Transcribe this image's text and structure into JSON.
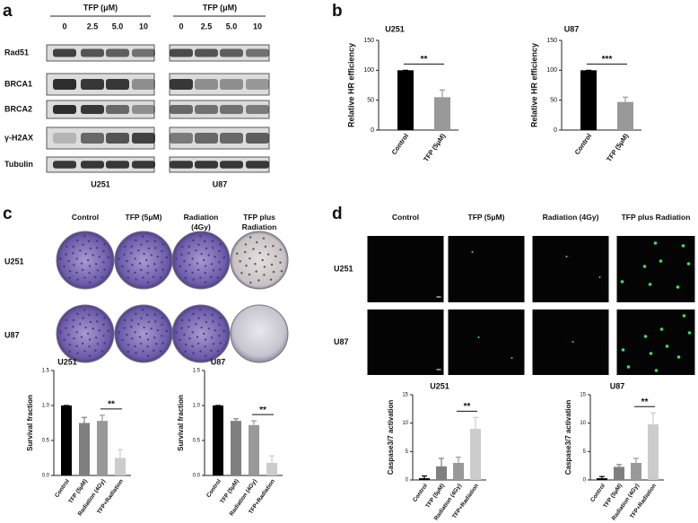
{
  "panel_letters": [
    "a",
    "b",
    "c",
    "d"
  ],
  "western_blot": {
    "groups": [
      {
        "treatment": "TFP (μM)",
        "doses": [
          "0",
          "2.5",
          "5.0",
          "10"
        ],
        "cell_line": "U251"
      },
      {
        "treatment": "TFP (μM)",
        "doses": [
          "0",
          "2.5",
          "5.0",
          "10"
        ],
        "cell_line": "U87"
      }
    ],
    "proteins": [
      "Rad51",
      "BRCA1",
      "BRCA2",
      "γ-H2AX",
      "Tubulin"
    ]
  },
  "colony_assay": {
    "columns": [
      "Control",
      "TFP (5μM)",
      "Radiation (4Gy)",
      "TFP plus Radiation"
    ],
    "rows": [
      "U251",
      "U87"
    ]
  },
  "caspase_imaging": {
    "columns": [
      "Control",
      "TFP (5μM)",
      "Radiation (4Gy)",
      "TFP plus Radiation"
    ],
    "rows": [
      "U251",
      "U87"
    ]
  },
  "chart_data": [
    {
      "type": "bar",
      "title": "U251",
      "ylabel": "Relative HR efficiency",
      "categories": [
        "Control",
        "TFP (5μM)"
      ],
      "values": [
        100,
        55
      ],
      "errors": [
        0,
        12
      ],
      "colors": [
        "#000000",
        "#999999"
      ],
      "ylim": [
        0,
        150
      ],
      "yticks": [
        0,
        50,
        100,
        150
      ],
      "significance": "**",
      "significance_between": [
        0,
        1
      ]
    },
    {
      "type": "bar",
      "title": "U87",
      "ylabel": "Relative HR efficiency",
      "categories": [
        "Control",
        "TFP (5μM)"
      ],
      "values": [
        100,
        47
      ],
      "errors": [
        0,
        8
      ],
      "colors": [
        "#000000",
        "#999999"
      ],
      "ylim": [
        0,
        150
      ],
      "yticks": [
        0,
        50,
        100,
        150
      ],
      "significance": "***",
      "significance_between": [
        0,
        1
      ]
    },
    {
      "type": "bar",
      "title": "U251",
      "ylabel": "Survival fraction",
      "categories": [
        "Control",
        "TFP (5μM)",
        "Radiation (4Gy)",
        "TFP+Radiation"
      ],
      "values": [
        1.0,
        0.75,
        0.78,
        0.25
      ],
      "errors": [
        0,
        0.08,
        0.08,
        0.12
      ],
      "colors": [
        "#000000",
        "#7f7f7f",
        "#999999",
        "#cccccc"
      ],
      "ylim": [
        0,
        1.5
      ],
      "yticks": [
        {
          "value": 0,
          "label": "0.0"
        },
        0.5,
        {
          "value": 1,
          "label": "1.0"
        },
        1.5
      ],
      "significance": "**",
      "significance_between": [
        2,
        3
      ]
    },
    {
      "type": "bar",
      "title": "U87",
      "ylabel": "Survival fraction",
      "categories": [
        "Control",
        "TFP (5μM)",
        "Radiation (4Gy)",
        "TFP+Radiation"
      ],
      "values": [
        1.0,
        0.78,
        0.72,
        0.18
      ],
      "errors": [
        0,
        0.03,
        0.06,
        0.1
      ],
      "colors": [
        "#000000",
        "#7f7f7f",
        "#999999",
        "#cccccc"
      ],
      "ylim": [
        0,
        1.5
      ],
      "yticks": [
        {
          "value": 0,
          "label": "0.0"
        },
        0.5,
        {
          "value": 1,
          "label": "1.0"
        },
        1.5
      ],
      "significance": "**",
      "significance_between": [
        2,
        3
      ]
    },
    {
      "type": "bar",
      "title": "U251",
      "ylabel": "Caspase3/7 activation",
      "categories": [
        "Control",
        "TFP (5μM)",
        "Radiation (4Gy)",
        "TFP+Radiation"
      ],
      "values": [
        0.3,
        2.4,
        3.0,
        9.0
      ],
      "errors": [
        0.4,
        1.4,
        1.0,
        2.0
      ],
      "colors": [
        "#000000",
        "#7f7f7f",
        "#999999",
        "#cccccc"
      ],
      "ylim": [
        0,
        15
      ],
      "yticks": [
        0,
        5,
        10,
        15
      ],
      "significance": "**",
      "significance_between": [
        2,
        3
      ]
    },
    {
      "type": "bar",
      "title": "U87",
      "ylabel": "Caspase3/7 activation",
      "categories": [
        "Control",
        "TFP (5μM)",
        "Radiation (4Gy)",
        "TFP+Radiation"
      ],
      "values": [
        0.3,
        2.3,
        3.0,
        9.8
      ],
      "errors": [
        0.3,
        0.4,
        0.8,
        2.0
      ],
      "colors": [
        "#000000",
        "#7f7f7f",
        "#999999",
        "#cccccc"
      ],
      "ylim": [
        0,
        15
      ],
      "yticks": [
        0,
        5,
        10,
        15
      ],
      "significance": "**",
      "significance_between": [
        2,
        3
      ]
    }
  ]
}
